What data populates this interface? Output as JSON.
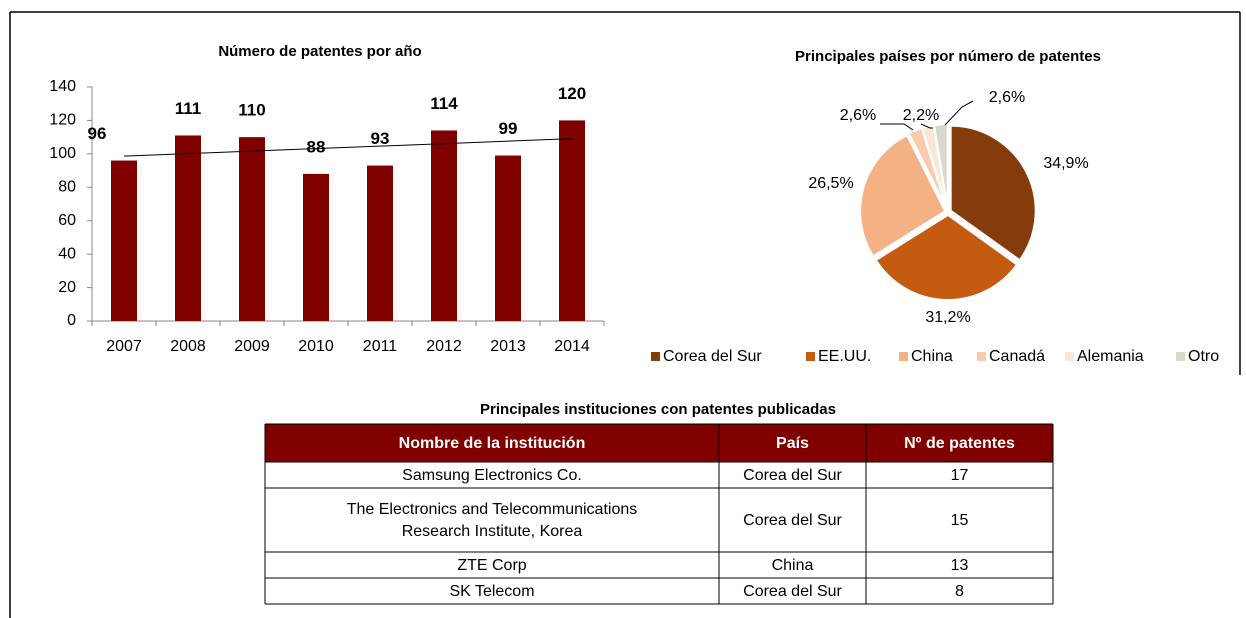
{
  "chart_data": [
    {
      "type": "bar",
      "title": "Número de patentes por año",
      "categories": [
        "2007",
        "2008",
        "2009",
        "2010",
        "2011",
        "2012",
        "2013",
        "2014"
      ],
      "values": [
        96,
        111,
        110,
        88,
        93,
        114,
        99,
        120
      ],
      "color": "#800000",
      "ylim": [
        0,
        140
      ],
      "yticks": [
        0,
        20,
        40,
        60,
        80,
        100,
        120,
        140
      ],
      "trendline": true
    },
    {
      "type": "pie",
      "title": "Principales países por número de patentes",
      "categories": [
        "Corea del Sur",
        "EE.UU.",
        "China",
        "Canadá",
        "Alemania",
        "Otro"
      ],
      "values": [
        34.9,
        31.2,
        26.5,
        2.6,
        2.2,
        2.6
      ],
      "value_labels": [
        "34,9%",
        "31,2%",
        "26,5%",
        "2,6%",
        "2,2%",
        "2,6%"
      ],
      "colors": [
        "#843c0c",
        "#c55a11",
        "#f4b183",
        "#f8cbad",
        "#fbe5d6",
        "#d9d9c9"
      ]
    }
  ],
  "table": {
    "title": "Principales instituciones con patentes publicadas",
    "header": [
      "Nombre de la institución",
      "País",
      "Nº de patentes"
    ],
    "rows": [
      [
        "Samsung Electronics Co.",
        "Corea del Sur",
        "17"
      ],
      [
        "The Electronics and Telecommunications Research Institute, Korea",
        "Corea del Sur",
        "15"
      ],
      [
        "ZTE Corp",
        "China",
        "13"
      ],
      [
        "SK Telecom",
        "Corea del Sur",
        "8"
      ]
    ]
  }
}
